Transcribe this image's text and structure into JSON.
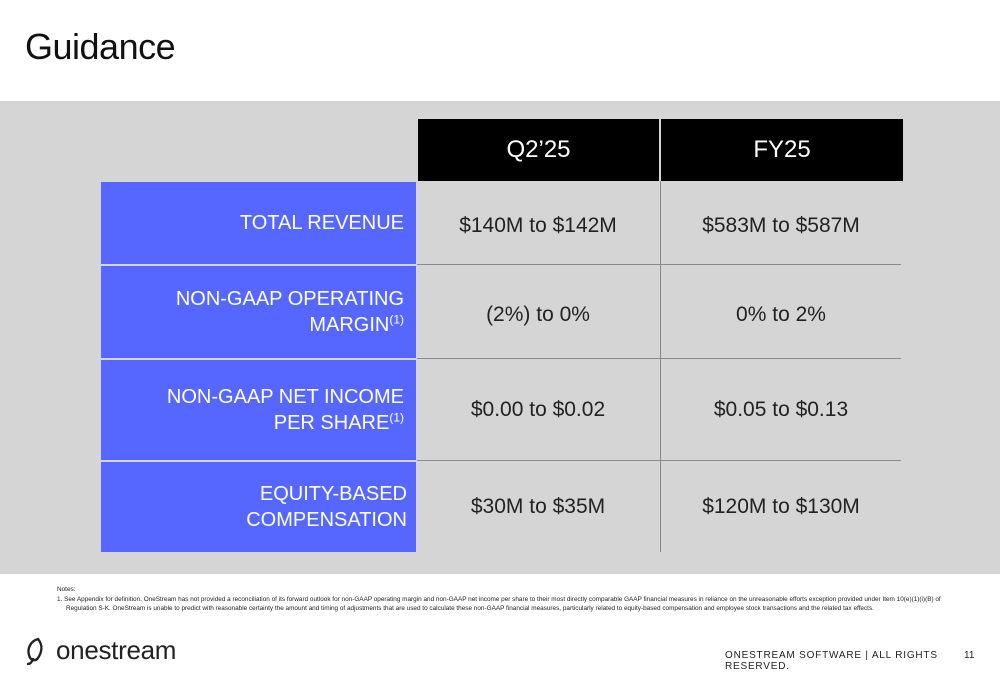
{
  "title": "Guidance",
  "columns": [
    "Q2’25",
    "FY25"
  ],
  "rows": [
    {
      "label_line1": "TOTAL REVENUE",
      "label_line2": "",
      "footnote": "",
      "q2": "$140M to $142M",
      "fy": "$583M to $587M"
    },
    {
      "label_line1": "NON-GAAP OPERATING",
      "label_line2": "MARGIN",
      "footnote": "(1)",
      "q2": "(2%) to 0%",
      "fy": "0% to 2%"
    },
    {
      "label_line1": "NON-GAAP NET INCOME",
      "label_line2": "PER SHARE",
      "footnote": "(1)",
      "q2": "$0.00 to $0.02",
      "fy": "$0.05 to $0.13"
    },
    {
      "label_line1": "EQUITY-BASED COMPENSATION",
      "label_line2": "",
      "footnote": "",
      "q2": "$30M to $35M",
      "fy": "$120M to $130M"
    }
  ],
  "notes": {
    "heading": "Notes:",
    "items": [
      "1.  See Appendix for definition.  OneStream has not provided a reconciliation of its forward outlook for non-GAAP operating margin and non-GAAP net income per share to their most directly comparable GAAP financial measures in reliance on the unreasonable efforts exception provided under Item 10(e)(1)(i)(B) of Regulation S-K. OneStream is unable to predict with reasonable certainty the amount and timing of adjustments that are used to calculate these non-GAAP financial measures, particularly related to equity-based compensation and employee stock transactions and the related tax effects."
    ]
  },
  "footer": {
    "logo_text": "onestream",
    "copyright": "ONESTREAM SOFTWARE  |  ALL RIGHTS RESERVED.",
    "page_number": "11"
  },
  "colors": {
    "label_blue": "#5667ff",
    "header_black": "#000000",
    "panel_gray": "#d5d5d5"
  }
}
